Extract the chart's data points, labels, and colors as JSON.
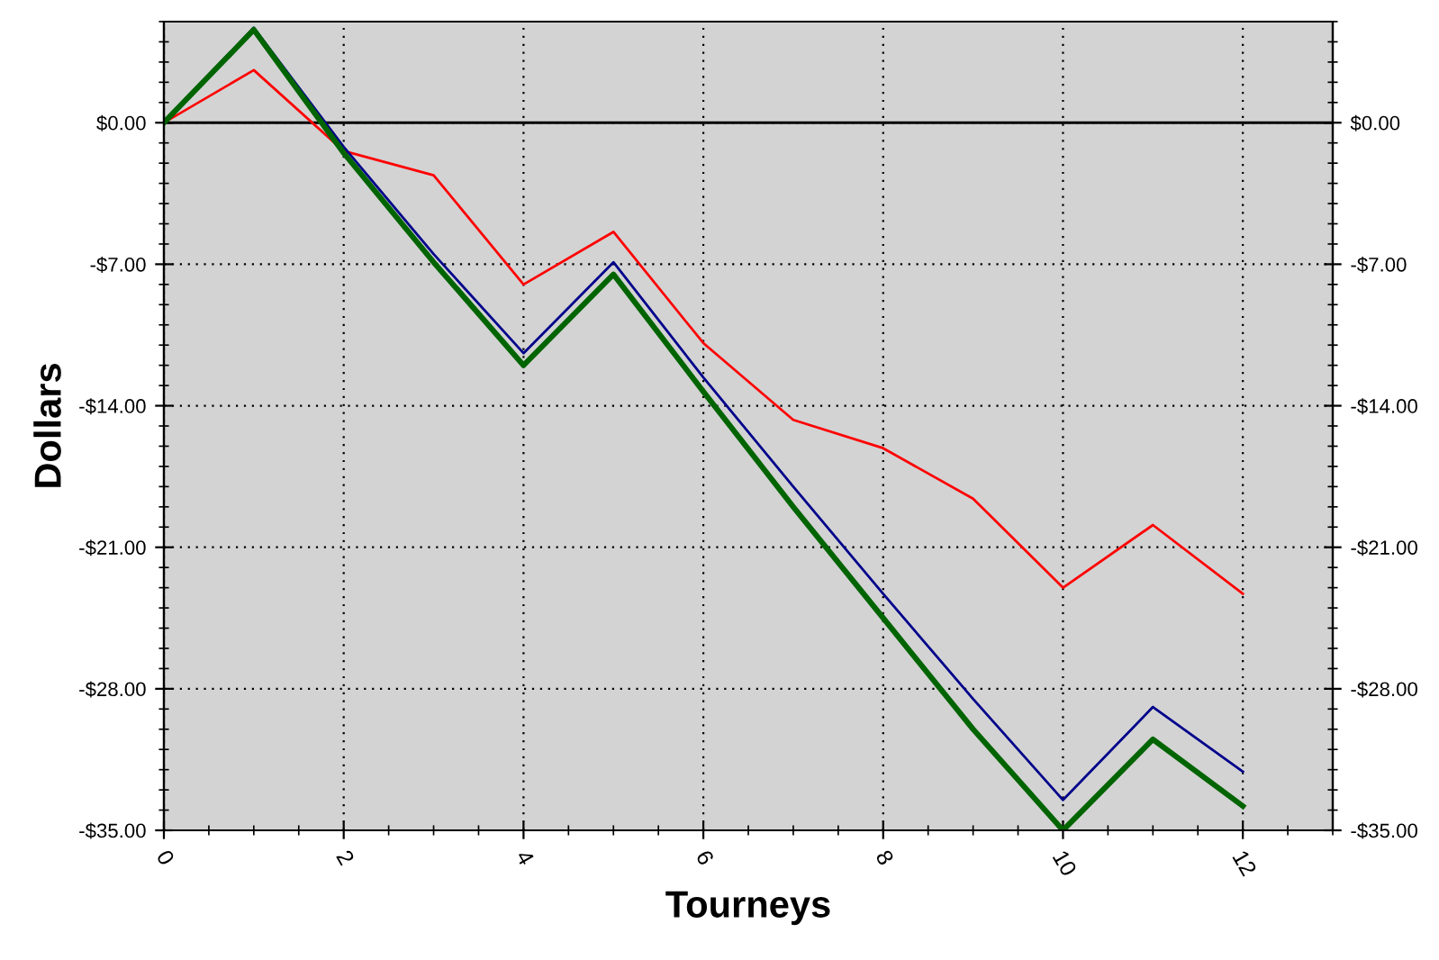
{
  "chart_data": {
    "type": "line",
    "xlabel": "Tourneys",
    "ylabel": "Dollars",
    "x": [
      0,
      1,
      2,
      3,
      4,
      5,
      6,
      7,
      8,
      9,
      10,
      11,
      12
    ],
    "series": [
      {
        "color": "#ff0000",
        "values": [
          0,
          2.6,
          -1.4,
          -2.6,
          -8.0,
          -5.4,
          -10.9,
          -14.7,
          -16.1,
          -18.6,
          -23.0,
          -19.9,
          -23.3
        ]
      },
      {
        "color": "#00008b",
        "values": [
          0,
          4.7,
          -1.2,
          -6.5,
          -11.4,
          -6.9,
          -12.6,
          -18.0,
          -23.3,
          -28.5,
          -33.5,
          -28.9,
          -32.1
        ]
      },
      {
        "color": "#006400",
        "values": [
          0,
          4.6,
          -1.5,
          -6.9,
          -12.0,
          -7.5,
          -13.3,
          -19.0,
          -24.5,
          -30.0,
          -35.0,
          -30.5,
          -33.8
        ]
      }
    ],
    "xlim": [
      0,
      13
    ],
    "xticks": [
      0,
      2,
      4,
      6,
      8,
      10,
      12
    ],
    "ylim": [
      -35,
      5
    ],
    "yticks": [
      {
        "value": -35,
        "label": "-$35.00"
      },
      {
        "value": -28,
        "label": "-$28.00"
      },
      {
        "value": -21,
        "label": "-$21.00"
      },
      {
        "value": -14,
        "label": "-$14.00"
      },
      {
        "value": -7,
        "label": "-$7.00"
      },
      {
        "value": 0,
        "label": "$0.00"
      }
    ],
    "y2lim": [
      -35,
      5
    ],
    "y2ticks": [
      {
        "value": -35,
        "label": "-$35.00"
      },
      {
        "value": -28,
        "label": "-$28.00"
      },
      {
        "value": -21,
        "label": "-$21.00"
      },
      {
        "value": -14,
        "label": "-$14.00"
      },
      {
        "value": -7,
        "label": "-$7.00"
      },
      {
        "value": 0,
        "label": "$0.00"
      }
    ],
    "ref_lines": [
      {
        "axis": "y",
        "value": 0,
        "color": "#000000",
        "line_style": "solid"
      }
    ],
    "grid": true,
    "legend": false,
    "marker": "none",
    "line_style": "solid"
  }
}
